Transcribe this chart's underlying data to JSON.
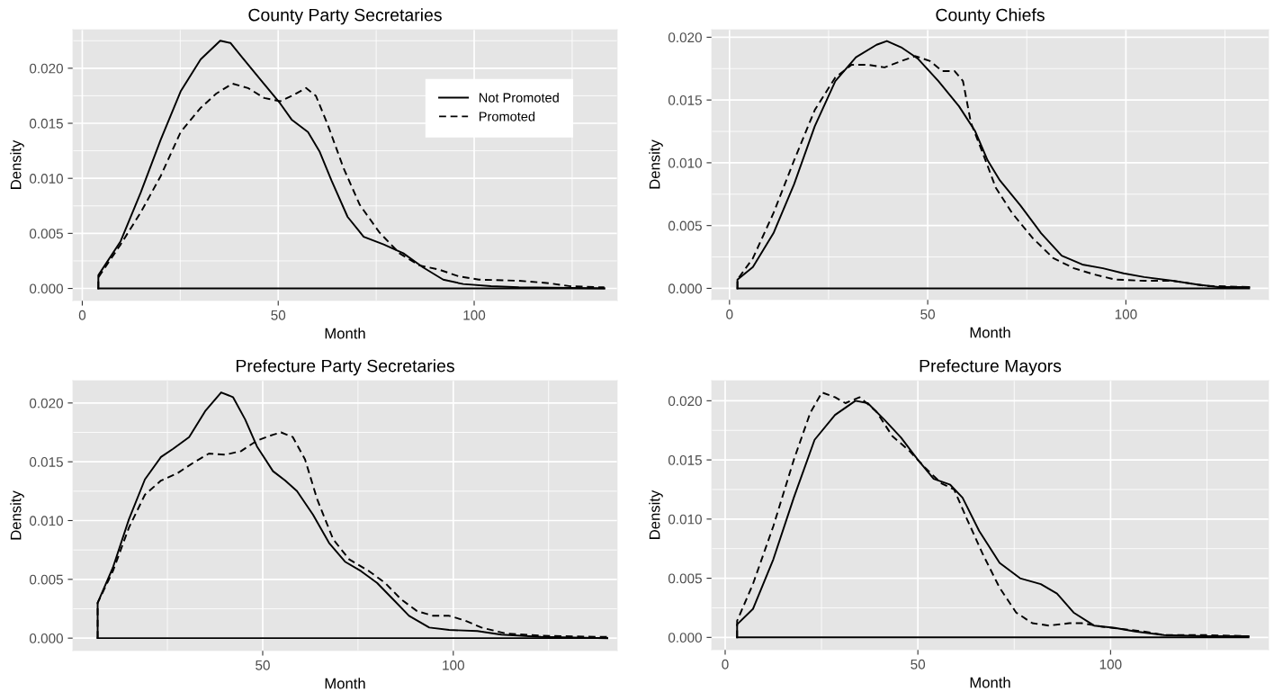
{
  "chart_data": [
    {
      "type": "line",
      "title": "County Party Secretaries",
      "xlabel": "Month",
      "ylabel": "Density",
      "xlim": [
        -2.4,
        136.5
      ],
      "ylim": [
        -0.0011,
        0.0235
      ],
      "xticks": [
        0,
        50,
        100
      ],
      "yticks": [
        {
          "value": 0,
          "label": "0.000"
        },
        {
          "value": 0.005,
          "label": "0.005"
        },
        {
          "value": 0.01,
          "label": "0.010"
        },
        {
          "value": 0.015,
          "label": "0.015"
        },
        {
          "value": 0.02,
          "label": "0.020"
        }
      ],
      "grid": true,
      "legend": "top right",
      "ref_lines": [
        {
          "axis": "y",
          "value": 0
        }
      ],
      "series": [
        {
          "name": "Not Promoted",
          "color": "#000000",
          "line_style": "solid",
          "x": [
            4.1,
            4.1,
            9.8,
            14.9,
            20.0,
            25.1,
            30.2,
            35.2,
            37.8,
            40.3,
            45.4,
            50.5,
            53.5,
            57.6,
            60.6,
            63.6,
            67.7,
            71.8,
            76.9,
            81.9,
            87.0,
            92.1,
            97.2,
            104.3,
            111.4,
            133.2
          ],
          "values": [
            0,
            0.0012,
            0.0043,
            0.0087,
            0.0135,
            0.0179,
            0.0208,
            0.0225,
            0.0223,
            0.0212,
            0.019,
            0.0168,
            0.0153,
            0.0142,
            0.0124,
            0.0098,
            0.0065,
            0.0047,
            0.004,
            0.0032,
            0.0019,
            0.0008,
            0.0004,
            0.0002,
            0.0001,
            0
          ]
        },
        {
          "name": "Promoted",
          "color": "#000000",
          "line_style": "dashed",
          "x": [
            4.1,
            4.1,
            9.8,
            14.9,
            20.0,
            25.1,
            30.2,
            34.2,
            38.3,
            42.3,
            46.4,
            50.5,
            53.5,
            57.1,
            59.6,
            62.6,
            66.7,
            70.8,
            75.8,
            80.9,
            86.0,
            91.1,
            96.1,
            101.2,
            111.4,
            118.5,
            124.6,
            133.2
          ],
          "values": [
            0,
            0.001,
            0.004,
            0.0069,
            0.0102,
            0.0142,
            0.0164,
            0.0177,
            0.0186,
            0.0182,
            0.0173,
            0.017,
            0.0175,
            0.0182,
            0.0175,
            0.0149,
            0.0109,
            0.0076,
            0.0051,
            0.0032,
            0.0021,
            0.0017,
            0.0011,
            0.0008,
            0.0007,
            0.0005,
            0.0002,
            0.0001
          ]
        }
      ]
    },
    {
      "type": "line",
      "title": "County Chiefs",
      "xlabel": "Month",
      "ylabel": "Density",
      "xlim": [
        -4.5,
        136
      ],
      "ylim": [
        -0.0009,
        0.0206
      ],
      "xticks": [
        0,
        50,
        100
      ],
      "yticks": [
        {
          "value": 0,
          "label": "0.000"
        },
        {
          "value": 0.005,
          "label": "0.005"
        },
        {
          "value": 0.01,
          "label": "0.010"
        },
        {
          "value": 0.015,
          "label": "0.015"
        },
        {
          "value": 0.02,
          "label": "0.020"
        }
      ],
      "grid": true,
      "ref_lines": [
        {
          "axis": "y",
          "value": 0
        }
      ],
      "series": [
        {
          "color": "#000000",
          "line_style": "solid",
          "x": [
            2.0,
            2.0,
            5.9,
            11.1,
            16.3,
            21.5,
            26.7,
            31.9,
            37.1,
            39.7,
            43.3,
            47.5,
            52.7,
            57.9,
            62.0,
            65.1,
            68.2,
            73.4,
            78.6,
            83.8,
            89.0,
            94.2,
            99.4,
            104.6,
            111.8,
            118.1,
            123.3,
            131.1
          ],
          "values": [
            0,
            0.0007,
            0.0017,
            0.0044,
            0.0083,
            0.0129,
            0.0165,
            0.0184,
            0.0194,
            0.0197,
            0.0192,
            0.0183,
            0.0165,
            0.0145,
            0.0125,
            0.0102,
            0.0086,
            0.0066,
            0.0044,
            0.0026,
            0.0019,
            0.0016,
            0.0012,
            0.0009,
            0.0006,
            0.0003,
            0.0001,
            0.0001
          ]
        },
        {
          "color": "#000000",
          "line_style": "dashed",
          "x": [
            2.0,
            2.0,
            5.9,
            11.1,
            16.3,
            21.5,
            26.7,
            30.8,
            35.0,
            39.1,
            43.3,
            46.9,
            50.6,
            53.7,
            56.8,
            58.9,
            60.9,
            64.1,
            67.2,
            71.3,
            76.5,
            81.7,
            86.9,
            92.1,
            97.3,
            104.6,
            111.8,
            120.1,
            131.1
          ],
          "values": [
            0,
            0.0007,
            0.0024,
            0.006,
            0.0102,
            0.0142,
            0.0168,
            0.0178,
            0.0178,
            0.0176,
            0.0181,
            0.0185,
            0.0181,
            0.0173,
            0.0173,
            0.0165,
            0.0132,
            0.0106,
            0.008,
            0.006,
            0.004,
            0.0024,
            0.0016,
            0.0011,
            0.0007,
            0.0006,
            0.0006,
            0.0002,
            0.0001
          ]
        }
      ]
    },
    {
      "type": "line",
      "title": "Prefecture Party Secretaries",
      "xlabel": "Month",
      "ylabel": "Density",
      "xlim": [
        0.2,
        143
      ],
      "ylim": [
        -0.00106,
        0.0219
      ],
      "xticks": [
        50,
        100
      ],
      "yticks": [
        {
          "value": 0,
          "label": "0.000"
        },
        {
          "value": 0.005,
          "label": "0.005"
        },
        {
          "value": 0.01,
          "label": "0.010"
        },
        {
          "value": 0.015,
          "label": "0.015"
        },
        {
          "value": 0.02,
          "label": "0.020"
        }
      ],
      "grid": true,
      "ref_lines": [
        {
          "axis": "y",
          "value": 0
        }
      ],
      "series": [
        {
          "color": "#000000",
          "line_style": "solid",
          "x": [
            6.7,
            6.7,
            10.7,
            14.9,
            19.1,
            23.3,
            26.5,
            30.7,
            34.9,
            39.1,
            42.2,
            45.4,
            48.5,
            52.7,
            55.9,
            59.0,
            63.2,
            67.4,
            71.6,
            75.8,
            80.0,
            84.2,
            88.4,
            93.7,
            98.9,
            106.3,
            112.6,
            123.1,
            140.4
          ],
          "values": [
            0,
            0.003,
            0.006,
            0.0101,
            0.0135,
            0.0154,
            0.0161,
            0.0171,
            0.0193,
            0.0209,
            0.0205,
            0.0186,
            0.0163,
            0.0142,
            0.0134,
            0.0125,
            0.0105,
            0.0081,
            0.0065,
            0.0057,
            0.0047,
            0.0033,
            0.0019,
            0.0009,
            0.0007,
            0.0006,
            0.0003,
            0.0001,
            0
          ]
        },
        {
          "color": "#000000",
          "line_style": "dashed",
          "x": [
            6.7,
            6.7,
            10.7,
            14.9,
            19.1,
            23.3,
            27.5,
            31.7,
            35.9,
            40.1,
            44.3,
            48.5,
            52.7,
            54.8,
            57.9,
            61.1,
            64.3,
            68.5,
            72.7,
            77.9,
            82.1,
            86.3,
            90.5,
            94.7,
            98.9,
            103.1,
            107.4,
            113.7,
            123.1,
            140.4
          ],
          "values": [
            0,
            0.003,
            0.0057,
            0.0094,
            0.0122,
            0.0134,
            0.014,
            0.0149,
            0.0157,
            0.0156,
            0.0159,
            0.0168,
            0.0173,
            0.0175,
            0.0171,
            0.0152,
            0.0118,
            0.0084,
            0.0067,
            0.0057,
            0.0047,
            0.0033,
            0.0023,
            0.0019,
            0.0019,
            0.0015,
            0.0009,
            0.0004,
            0.0002,
            0.0001
          ]
        }
      ]
    },
    {
      "type": "line",
      "title": "Prefecture Mayors",
      "xlabel": "Month",
      "ylabel": "Density",
      "xlim": [
        -3.5,
        141
      ],
      "ylim": [
        -0.00104,
        0.0217
      ],
      "xticks": [
        0,
        50,
        100
      ],
      "yticks": [
        {
          "value": 0,
          "label": "0.000"
        },
        {
          "value": 0.005,
          "label": "0.005"
        },
        {
          "value": 0.01,
          "label": "0.010"
        },
        {
          "value": 0.015,
          "label": "0.015"
        },
        {
          "value": 0.02,
          "label": "0.020"
        }
      ],
      "grid": true,
      "ref_lines": [
        {
          "axis": "y",
          "value": 0
        }
      ],
      "series": [
        {
          "color": "#000000",
          "line_style": "solid",
          "x": [
            3.1,
            3.1,
            7.2,
            12.5,
            17.8,
            23.2,
            28.5,
            33.8,
            37.0,
            41.3,
            45.6,
            49.8,
            54.1,
            58.4,
            61.6,
            65.9,
            71.2,
            76.5,
            81.9,
            86.1,
            90.4,
            95.7,
            101.1,
            106.4,
            113.9,
            124.5,
            135.8
          ],
          "values": [
            0,
            0.0011,
            0.0024,
            0.0066,
            0.0118,
            0.0167,
            0.0188,
            0.02,
            0.0198,
            0.0184,
            0.0169,
            0.0151,
            0.0134,
            0.0129,
            0.0118,
            0.009,
            0.0063,
            0.005,
            0.0045,
            0.0037,
            0.0021,
            0.001,
            0.0008,
            0.0005,
            0.0002,
            0.0001,
            0.0001
          ]
        },
        {
          "color": "#000000",
          "line_style": "dashed",
          "x": [
            3.1,
            3.1,
            7.2,
            12.5,
            17.8,
            22.1,
            25.1,
            28.5,
            31.2,
            34.9,
            39.2,
            43.4,
            47.7,
            52.0,
            56.2,
            59.4,
            62.6,
            66.9,
            71.2,
            75.5,
            79.7,
            84.0,
            89.3,
            92.5,
            97.9,
            103.2,
            108.5,
            113.9,
            124.5,
            135.8
          ],
          "values": [
            0,
            0.0014,
            0.0045,
            0.0094,
            0.015,
            0.019,
            0.0207,
            0.0203,
            0.0198,
            0.0203,
            0.0191,
            0.017,
            0.0158,
            0.0143,
            0.013,
            0.0125,
            0.0101,
            0.007,
            0.0042,
            0.0021,
            0.0012,
            0.001,
            0.0012,
            0.0012,
            0.0009,
            0.0007,
            0.0005,
            0.0002,
            0.0002,
            0.0001
          ]
        }
      ]
    }
  ]
}
